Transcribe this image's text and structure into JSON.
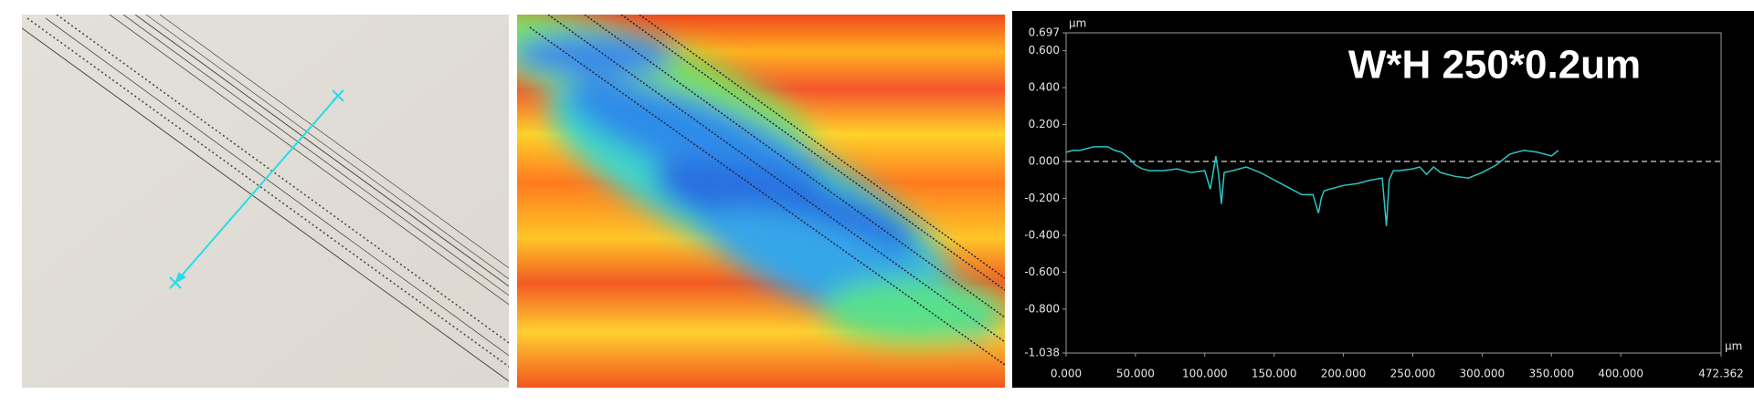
{
  "chart_data": {
    "type": "line",
    "title": "W*H 250*0.2um",
    "x_unit": "µm",
    "y_unit": "µm",
    "x": [
      0,
      5,
      10,
      15,
      20,
      25,
      30,
      35,
      40,
      45,
      50,
      55,
      60,
      70,
      80,
      90,
      100,
      104,
      106,
      108,
      110,
      112,
      114,
      120,
      130,
      140,
      150,
      160,
      170,
      178,
      182,
      184,
      186,
      190,
      200,
      210,
      220,
      228,
      231,
      233,
      236,
      240,
      250,
      255,
      260,
      265,
      270,
      280,
      290,
      300,
      310,
      320,
      330,
      340,
      350,
      355
    ],
    "values": [
      0.05,
      0.06,
      0.06,
      0.07,
      0.08,
      0.08,
      0.08,
      0.06,
      0.05,
      0.02,
      -0.02,
      -0.04,
      -0.05,
      -0.05,
      -0.04,
      -0.06,
      -0.05,
      -0.15,
      -0.06,
      0.03,
      -0.07,
      -0.23,
      -0.06,
      -0.05,
      -0.03,
      -0.06,
      -0.1,
      -0.14,
      -0.18,
      -0.18,
      -0.28,
      -0.2,
      -0.16,
      -0.15,
      -0.13,
      -0.12,
      -0.1,
      -0.09,
      -0.35,
      -0.1,
      -0.05,
      -0.05,
      -0.04,
      -0.03,
      -0.07,
      -0.03,
      -0.06,
      -0.08,
      -0.09,
      -0.06,
      -0.02,
      0.04,
      0.06,
      0.05,
      0.03,
      0.06
    ],
    "color": "#2ec4c4",
    "reference_line": 0,
    "xlim": [
      0,
      472.362
    ],
    "ylim": [
      -1.038,
      0.697
    ],
    "xticks": [
      {
        "value": 0,
        "label": "0.000"
      },
      {
        "value": 50,
        "label": "50.000"
      },
      {
        "value": 100,
        "label": "100.000"
      },
      {
        "value": 150,
        "label": "150.000"
      },
      {
        "value": 200,
        "label": "200.000"
      },
      {
        "value": 250,
        "label": "250.000"
      },
      {
        "value": 300,
        "label": "300.000"
      },
      {
        "value": 350,
        "label": "350.000"
      },
      {
        "value": 400,
        "label": "400.000"
      },
      472.362
    ],
    "yticks": [
      0.697,
      {
        "value": 0.6,
        "label": "0.600"
      },
      {
        "value": 0.4,
        "label": "0.400"
      },
      {
        "value": 0.2,
        "label": "0.200"
      },
      {
        "value": 0,
        "label": "0.000"
      },
      {
        "value": -0.2,
        "label": "-0.200"
      },
      {
        "value": -0.4,
        "label": "-0.400"
      },
      {
        "value": -0.6,
        "label": "-0.600"
      },
      {
        "value": -0.8,
        "label": "-0.800"
      },
      -1.038
    ]
  }
}
